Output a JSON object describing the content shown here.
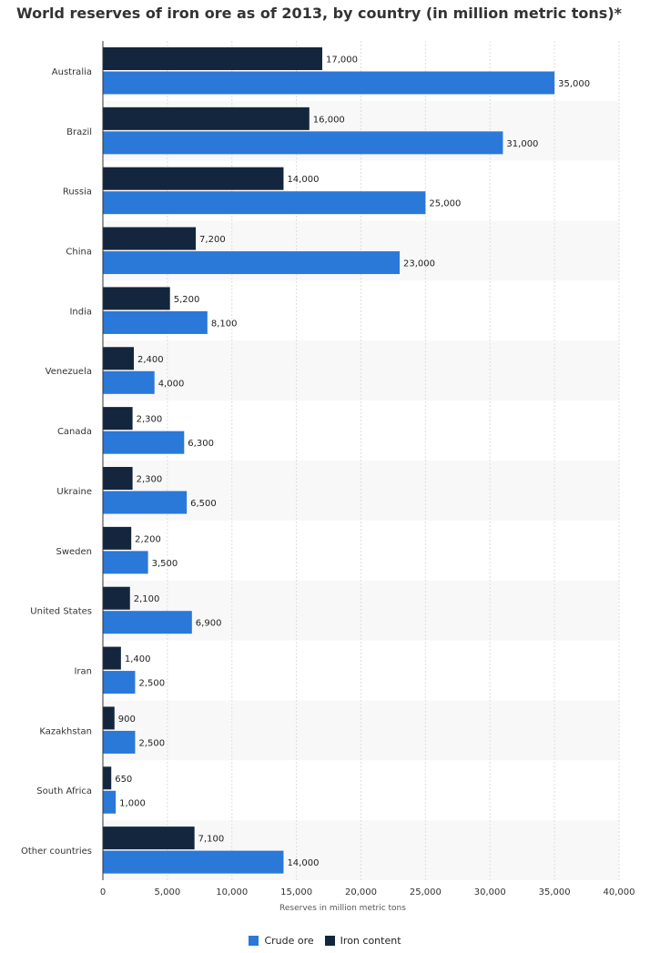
{
  "chart_data": {
    "type": "bar",
    "orientation": "horizontal",
    "title": "World reserves of iron ore as of 2013, by country (in million metric tons)*",
    "xlabel": "Reserves in million metric tons",
    "xlim": [
      0,
      40000
    ],
    "xticks": [
      0,
      5000,
      10000,
      15000,
      20000,
      25000,
      30000,
      35000,
      40000
    ],
    "xtick_labels": [
      "0",
      "5,000",
      "10,000",
      "15,000",
      "20,000",
      "25,000",
      "30,000",
      "35,000",
      "40,000"
    ],
    "grid": true,
    "legend_position": "bottom-center",
    "categories": [
      "Australia",
      "Brazil",
      "Russia",
      "China",
      "India",
      "Venezuela",
      "Canada",
      "Ukraine",
      "Sweden",
      "United States",
      "Iran",
      "Kazakhstan",
      "South Africa",
      "Other countries"
    ],
    "series": [
      {
        "name": "Iron content",
        "color": "#13263d",
        "values": [
          17000,
          16000,
          14000,
          7200,
          5200,
          2400,
          2300,
          2300,
          2200,
          2100,
          1400,
          900,
          650,
          7100
        ],
        "labels": [
          "17,000",
          "16,000",
          "14,000",
          "7,200",
          "5,200",
          "2,400",
          "2,300",
          "2,300",
          "2,200",
          "2,100",
          "1,400",
          "900",
          "650",
          "7,100"
        ]
      },
      {
        "name": "Crude ore",
        "color": "#2a78d8",
        "values": [
          35000,
          31000,
          25000,
          23000,
          8100,
          4000,
          6300,
          6500,
          3500,
          6900,
          2500,
          2500,
          1000,
          14000
        ],
        "labels": [
          "35,000",
          "31,000",
          "25,000",
          "23,000",
          "8,100",
          "4,000",
          "6,300",
          "6,500",
          "3,500",
          "6,900",
          "2,500",
          "2,500",
          "1,000",
          "14,000"
        ]
      }
    ]
  },
  "legend": {
    "items": [
      {
        "label": "Crude ore",
        "color": "#2a78d8"
      },
      {
        "label": "Iron content",
        "color": "#13263d"
      }
    ]
  }
}
